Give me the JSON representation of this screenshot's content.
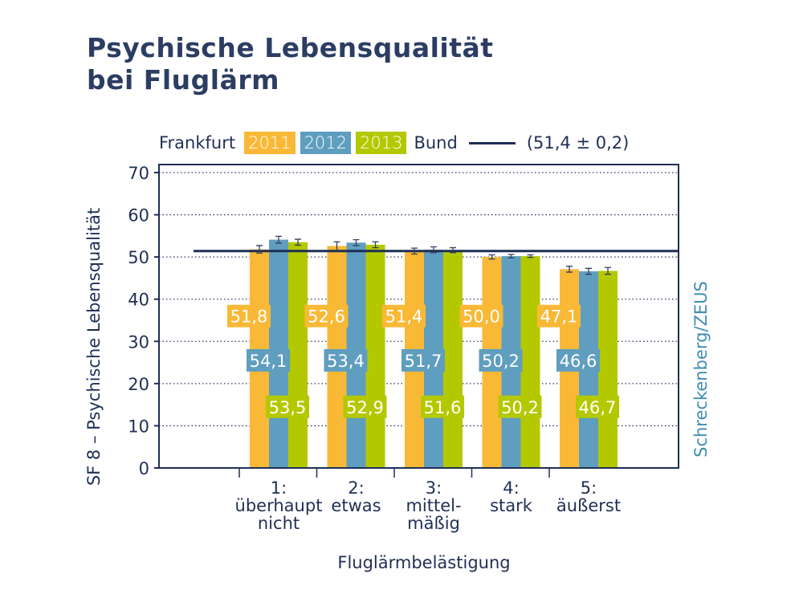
{
  "title_lines": [
    "Psychische Lebensqualität",
    "bei Fluglärm"
  ],
  "legend": {
    "prefix": "Frankfurt",
    "years": [
      "2011",
      "2012",
      "2013"
    ],
    "reference_label": "Bund",
    "reference_value_text": "(51,4 ± 0,2)"
  },
  "colors": {
    "2011": "#f9b936",
    "2012": "#5f9ebf",
    "2013": "#b4c800",
    "reference": "#1f2f55",
    "source": "#3f8db0"
  },
  "source": "Schreckenberg/ZEUS",
  "chart_data": {
    "type": "bar",
    "title": "Psychische Lebensqualität bei Fluglärm",
    "xlabel": "Fluglärmbelästigung",
    "ylabel": "SF 8 – Psychische Lebensqualität",
    "ylim": [
      0,
      70
    ],
    "yticks": [
      0,
      10,
      20,
      30,
      40,
      50,
      60,
      70
    ],
    "grid": true,
    "categories": [
      [
        "1:",
        "überhaupt",
        "nicht"
      ],
      [
        "2:",
        "etwas"
      ],
      [
        "3:",
        "mittel-",
        "mäßig"
      ],
      [
        "4:",
        "stark"
      ],
      [
        "5:",
        "äußerst"
      ]
    ],
    "series": [
      {
        "name": "2011",
        "values": [
          51.8,
          52.6,
          51.4,
          50.0,
          47.1
        ],
        "labels": [
          "51,8",
          "52,6",
          "51,4",
          "50,0",
          "47,1"
        ],
        "errors": [
          0.9,
          1.0,
          0.7,
          0.5,
          0.7
        ]
      },
      {
        "name": "2012",
        "values": [
          54.1,
          53.4,
          51.7,
          50.2,
          46.6
        ],
        "labels": [
          "54,1",
          "53,4",
          "51,7",
          "50,2",
          "46,6"
        ],
        "errors": [
          0.8,
          0.7,
          0.7,
          0.4,
          0.7
        ]
      },
      {
        "name": "2013",
        "values": [
          53.5,
          52.9,
          51.6,
          50.2,
          46.7
        ],
        "labels": [
          "53,5",
          "52,9",
          "51,6",
          "50,2",
          "46,7"
        ],
        "errors": [
          0.7,
          0.7,
          0.6,
          0.3,
          0.8
        ]
      }
    ],
    "reference_line": {
      "name": "Bund",
      "value": 51.4
    }
  }
}
